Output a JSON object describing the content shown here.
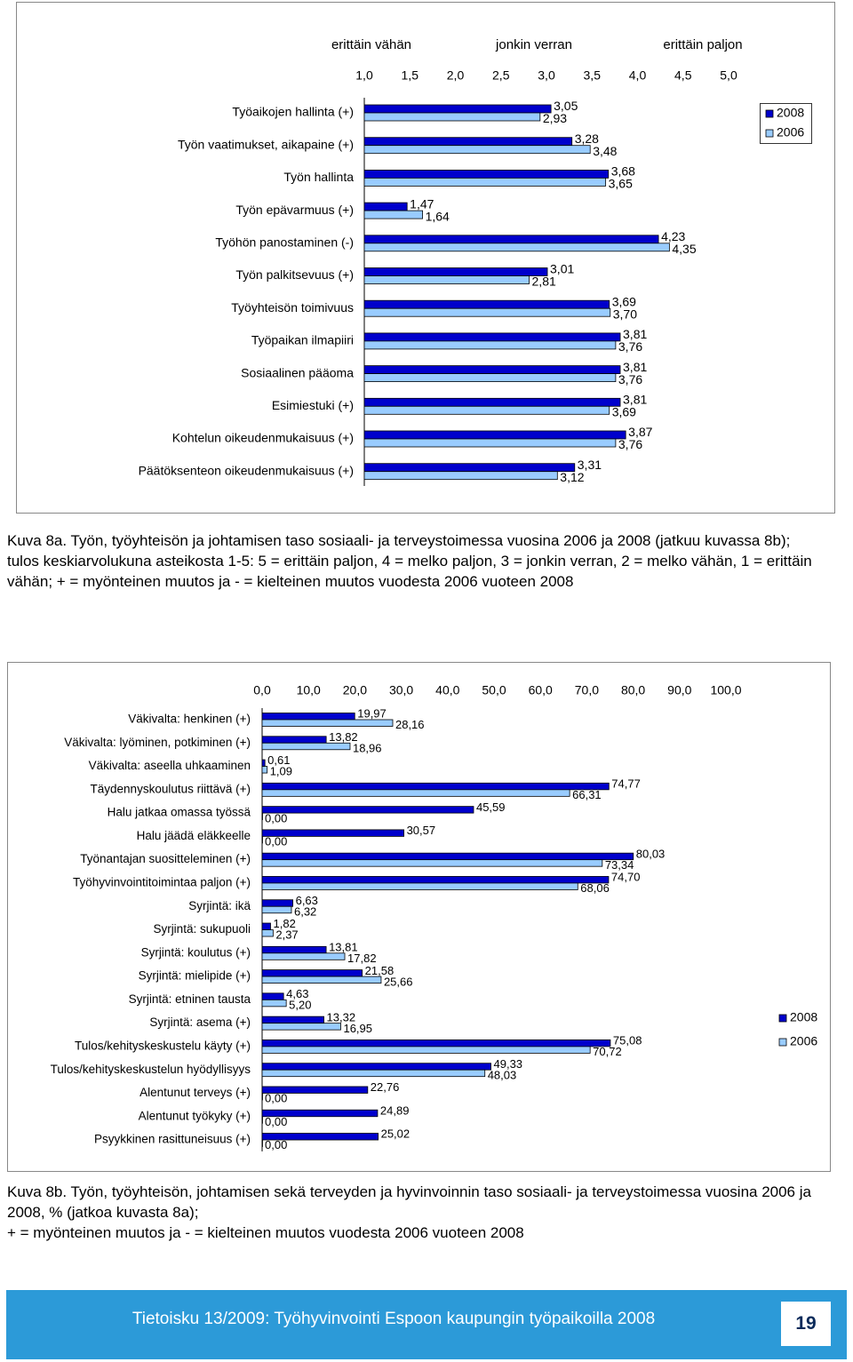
{
  "chart_data": [
    {
      "type": "hbar",
      "annotations": [
        "erittäin vähän",
        "jonkin verran",
        "erittäin paljon"
      ],
      "categories": [
        "Työaikojen hallinta (+)",
        "Työn vaatimukset, aikapaine (+)",
        "Työn hallinta",
        "Työn epävarmuus (+)",
        "Työhön panostaminen (-)",
        "Työn palkitsevuus (+)",
        "Työyhteisön toimivuus",
        "Työpaikan ilmapiiri",
        "Sosiaalinen pääoma",
        "Esimiestuki (+)",
        "Kohtelun oikeudenmukaisuus (+)",
        "Päätöksenteon oikeudenmukaisuus (+)"
      ],
      "series": [
        {
          "name": "2008",
          "color": "#0000cc",
          "values": [
            3.05,
            3.28,
            3.68,
            1.47,
            4.23,
            3.01,
            3.69,
            3.81,
            3.81,
            3.81,
            3.87,
            3.31
          ],
          "value_labels": [
            "3,05",
            "3,28",
            "3,68",
            "1,47",
            "4,23",
            "3,01",
            "3,69",
            "3,81",
            "3,81",
            "3,81",
            "3,87",
            "3,31"
          ]
        },
        {
          "name": "2006",
          "color": "#99ccff",
          "values": [
            2.93,
            3.48,
            3.65,
            1.64,
            4.35,
            2.81,
            3.7,
            3.76,
            3.76,
            3.69,
            3.76,
            3.12
          ],
          "value_labels": [
            "2,93",
            "3,48",
            "3,65",
            "1,64",
            "4,35",
            "2,81",
            "3,70",
            "3,76",
            "3,76",
            "3,69",
            "3,76",
            "3,12"
          ]
        }
      ],
      "xlim": [
        1,
        5
      ],
      "xticks": [
        {
          "value": 1,
          "label": "1,0"
        },
        {
          "value": 1.5,
          "label": "1,5"
        },
        {
          "value": 2,
          "label": "2,0"
        },
        {
          "value": 2.5,
          "label": "2,5"
        },
        {
          "value": 3,
          "label": "3,0"
        },
        {
          "value": 3.5,
          "label": "3,5"
        },
        {
          "value": 4,
          "label": "4,0"
        },
        {
          "value": 4.5,
          "label": "4,5"
        },
        {
          "value": 5,
          "label": "5,0"
        }
      ],
      "legend": "top right"
    },
    {
      "type": "hbar",
      "categories": [
        "Väkivalta: henkinen (+)",
        "Väkivalta: lyöminen, potkiminen (+)",
        "Väkivalta: aseella uhkaaminen",
        "Täydennyskoulutus riittävä (+)",
        "Halu jatkaa omassa työssä",
        "Halu jäädä eläkkeelle",
        "Työnantajan suositteleminen (+)",
        "Työhyvinvointitoimintaa paljon (+)",
        "Syrjintä: ikä",
        "Syrjintä: sukupuoli",
        "Syrjintä: koulutus (+)",
        "Syrjintä: mielipide (+)",
        "Syrjintä: etninen tausta",
        "Syrjintä: asema (+)",
        "Tulos/kehityskeskustelu käyty (+)",
        "Tulos/kehityskeskustelun hyödyllisyys",
        "Alentunut terveys (+)",
        "Alentunut työkyky (+)",
        "Psyykkinen rasittuneisuus (+)"
      ],
      "series": [
        {
          "name": "2008",
          "color": "#0000cc",
          "values": [
            19.97,
            13.82,
            0.61,
            74.77,
            45.59,
            30.57,
            80.03,
            74.7,
            6.63,
            1.82,
            13.81,
            21.58,
            4.63,
            13.32,
            75.08,
            49.33,
            22.76,
            24.89,
            25.02
          ],
          "value_labels": [
            "19,97",
            "13,82",
            "0,61",
            "74,77",
            "45,59",
            "30,57",
            "80,03",
            "74,70",
            "6,63",
            "1,82",
            "13,81",
            "21,58",
            "4,63",
            "13,32",
            "75,08",
            "49,33",
            "22,76",
            "24,89",
            "25,02"
          ]
        },
        {
          "name": "2006",
          "color": "#99ccff",
          "values": [
            28.16,
            18.96,
            1.09,
            66.31,
            0,
            0,
            73.34,
            68.06,
            6.32,
            2.37,
            17.82,
            25.66,
            5.2,
            16.95,
            70.72,
            48.03,
            0,
            0,
            0
          ],
          "value_labels": [
            "28,16",
            "18,96",
            "1,09",
            "66,31",
            "0,00",
            "0,00",
            "73,34",
            "68,06",
            "6,32",
            "2,37",
            "17,82",
            "25,66",
            "5,20",
            "16,95",
            "70,72",
            "48,03",
            "0,00",
            "0,00",
            "0,00"
          ]
        }
      ],
      "xlim": [
        0,
        100
      ],
      "xticks": [
        {
          "value": 0,
          "label": "0,0"
        },
        {
          "value": 10,
          "label": "10,0"
        },
        {
          "value": 20,
          "label": "20,0"
        },
        {
          "value": 30,
          "label": "30,0"
        },
        {
          "value": 40,
          "label": "40,0"
        },
        {
          "value": 50,
          "label": "50,0"
        },
        {
          "value": 60,
          "label": "60,0"
        },
        {
          "value": 70,
          "label": "70,0"
        },
        {
          "value": 80,
          "label": "80,0"
        },
        {
          "value": 90,
          "label": "90,0"
        },
        {
          "value": 100,
          "label": "100,0"
        }
      ],
      "legend": "right"
    }
  ],
  "captions": [
    [
      "Kuva 8a. Työn, työyhteisön ja johtamisen taso sosiaali- ja terveystoimessa vuosina 2006 ja 2008 (jatkuu kuvassa 8b);",
      "tulos keskiarvolukuna asteikosta 1-5: 5 = erittäin paljon, 4 = melko paljon, 3 = jonkin verran, 2 = melko vähän, 1 = erittäin vähän; + = myönteinen muutos ja - = kielteinen muutos vuodesta 2006 vuoteen 2008"
    ],
    [
      "Kuva 8b. Työn, työyhteisön, johtamisen sekä terveyden ja hyvinvoinnin taso sosiaali- ja terveystoimessa vuosina 2006 ja 2008, % (jatkoa kuvasta 8a);",
      "+ = myönteinen muutos ja - = kielteinen muutos vuodesta 2006 vuoteen 2008"
    ]
  ],
  "footer": {
    "text": "Tietoisku 13/2009: Työhyvinvointi Espoon kaupungin työpaikoilla 2008",
    "page": "19"
  }
}
